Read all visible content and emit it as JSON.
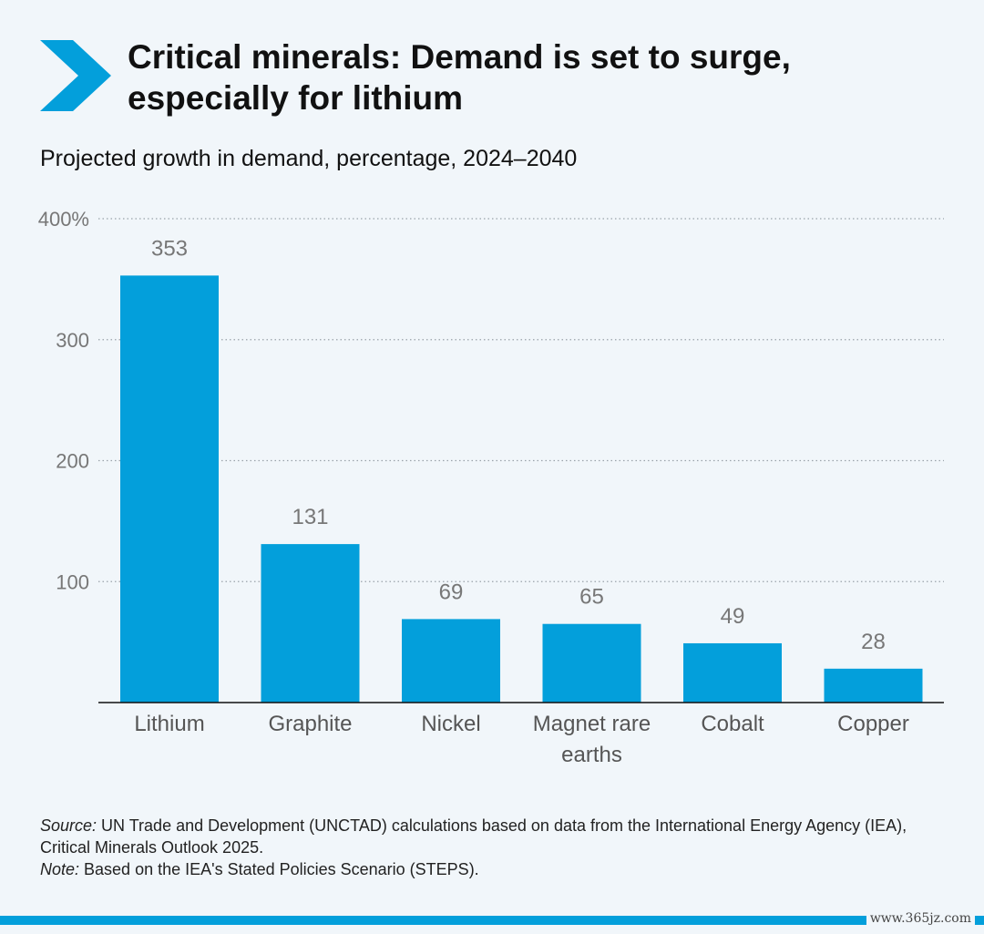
{
  "header": {
    "title_line1": "Critical minerals: Demand is set to surge,",
    "title_line2": "especially for lithium",
    "subtitle": "Projected growth in demand, percentage, 2024–2040",
    "logo_icon": "chevron-right-icon"
  },
  "colors": {
    "bar": "#039fdb",
    "background": "#f1f6fa",
    "accent": "#039fdb"
  },
  "chart_data": {
    "type": "bar",
    "title": "",
    "xlabel": "",
    "ylabel": "",
    "categories": [
      [
        "Lithium"
      ],
      [
        "Graphite"
      ],
      [
        "Nickel"
      ],
      [
        "Magnet rare",
        "earths"
      ],
      [
        "Cobalt"
      ],
      [
        "Copper"
      ]
    ],
    "values": [
      353,
      131,
      69,
      65,
      49,
      28
    ],
    "ylim": [
      0,
      400
    ],
    "yticks": [
      100,
      200,
      300,
      400
    ],
    "ytick_labels": [
      "100",
      "200",
      "300",
      "400%"
    ],
    "grid": true
  },
  "footer": {
    "source_label": "Source:",
    "source_text": " UN Trade and Development (UNCTAD) calculations based on data from the International Energy Agency (IEA), Critical Minerals Outlook 2025.",
    "note_label": "Note:",
    "note_text": " Based on the IEA's Stated Policies Scenario (STEPS)."
  },
  "watermark": "www.365jz.com"
}
